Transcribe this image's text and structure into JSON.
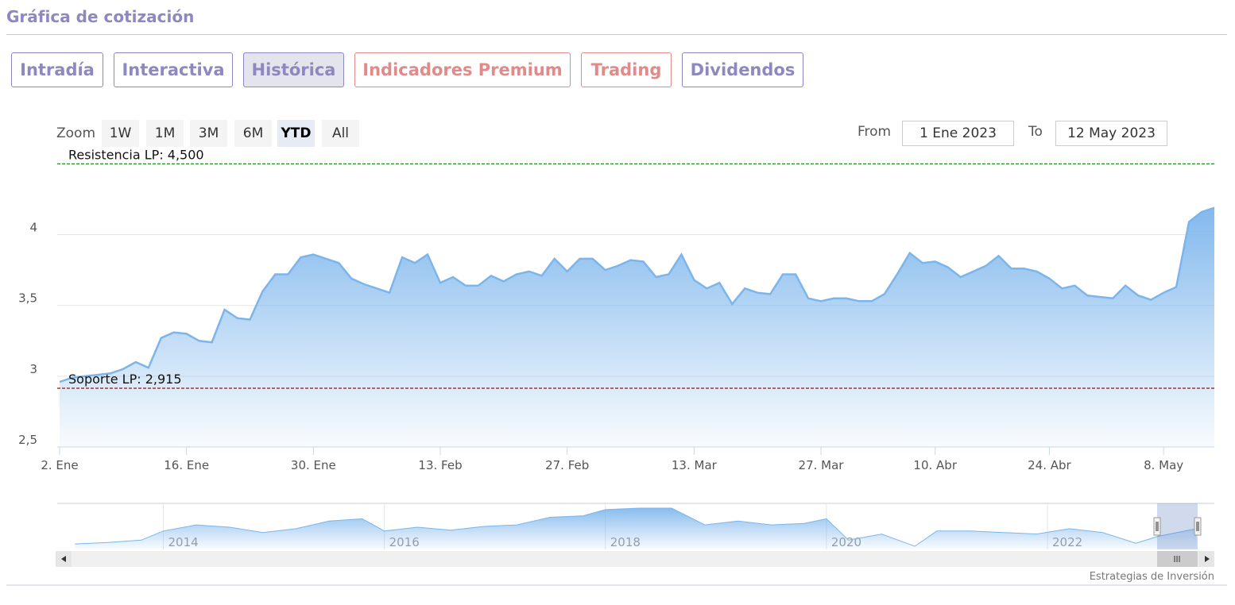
{
  "header": {
    "title": "Gráfica de cotización"
  },
  "tabs": [
    {
      "label": "Intradía",
      "color": "#8e88c0"
    },
    {
      "label": "Interactiva",
      "color": "#8e88c0"
    },
    {
      "label": "Histórica",
      "color": "#8e88c0",
      "active": true
    },
    {
      "label": "Indicadores Premium",
      "color": "#e08a8a"
    },
    {
      "label": "Trading",
      "color": "#e08a8a"
    },
    {
      "label": "Dividendos",
      "color": "#8e88c0"
    }
  ],
  "range_selector": {
    "zoom_label": "Zoom",
    "buttons": [
      {
        "label": "1W"
      },
      {
        "label": "1M"
      },
      {
        "label": "3M"
      },
      {
        "label": "6M"
      },
      {
        "label": "YTD",
        "active": true
      },
      {
        "label": "All"
      }
    ],
    "from_label": "From",
    "from": "1 Ene 2023",
    "to_label": "To",
    "to": "12 May 2023"
  },
  "chart_data": {
    "type": "area",
    "color": "#7cb5ec",
    "grid": true,
    "categories": [
      "2. Ene",
      null,
      null,
      null,
      null,
      null,
      null,
      null,
      null,
      null,
      "16. Ene",
      null,
      null,
      null,
      null,
      null,
      null,
      null,
      null,
      null,
      "30. Ene",
      null,
      null,
      null,
      null,
      null,
      null,
      null,
      null,
      null,
      "13. Feb",
      null,
      null,
      null,
      null,
      null,
      null,
      null,
      null,
      null,
      "27. Feb",
      null,
      null,
      null,
      null,
      null,
      null,
      null,
      null,
      null,
      "13. Mar",
      null,
      null,
      null,
      null,
      null,
      null,
      null,
      null,
      null,
      "27. Mar",
      null,
      null,
      null,
      null,
      null,
      null,
      null,
      null,
      "10. Abr",
      null,
      null,
      null,
      null,
      null,
      null,
      null,
      null,
      "24. Abr",
      null,
      null,
      null,
      null,
      null,
      null,
      null,
      null,
      "8. May",
      null,
      null,
      null,
      null
    ],
    "values": [
      2.96,
      2.99,
      3.0,
      3.01,
      3.02,
      3.05,
      3.1,
      3.06,
      3.27,
      3.31,
      3.3,
      3.25,
      3.24,
      3.47,
      3.41,
      3.4,
      3.6,
      3.72,
      3.72,
      3.84,
      3.86,
      3.83,
      3.8,
      3.69,
      3.65,
      3.62,
      3.59,
      3.84,
      3.8,
      3.86,
      3.66,
      3.7,
      3.64,
      3.64,
      3.71,
      3.67,
      3.72,
      3.74,
      3.71,
      3.83,
      3.74,
      3.83,
      3.83,
      3.75,
      3.78,
      3.82,
      3.81,
      3.7,
      3.72,
      3.86,
      3.68,
      3.62,
      3.66,
      3.51,
      3.62,
      3.59,
      3.58,
      3.72,
      3.72,
      3.55,
      3.53,
      3.55,
      3.55,
      3.53,
      3.53,
      3.58,
      3.72,
      3.87,
      3.8,
      3.81,
      3.77,
      3.7,
      3.74,
      3.78,
      3.85,
      3.76,
      3.76,
      3.74,
      3.69,
      3.62,
      3.64,
      3.57,
      3.56,
      3.55,
      3.64,
      3.57,
      3.54,
      3.59,
      3.63,
      4.09,
      4.16,
      4.19
    ],
    "ylim": [
      2.5,
      4.62
    ],
    "yticks": [
      {
        "value": 2.5,
        "label": "2,5"
      },
      3,
      {
        "value": 3.5,
        "label": "3,5"
      },
      4
    ],
    "plot_lines": [
      {
        "value": 4.5,
        "label": "Resistencia LP: 4,500",
        "color": "#1f8f1f"
      },
      {
        "value": 2.915,
        "label": "Soporte LP: 2,915",
        "color": "#9b1010"
      }
    ]
  },
  "navigator": {
    "type": "area",
    "color": "#7cb5ec",
    "x": [
      2013.2,
      2013.5,
      2013.8,
      2014.0,
      2014.3,
      2014.6,
      2014.9,
      2015.2,
      2015.5,
      2015.8,
      2016.0,
      2016.3,
      2016.6,
      2016.9,
      2017.2,
      2017.5,
      2017.8,
      2018.0,
      2018.3,
      2018.6,
      2018.9,
      2019.2,
      2019.5,
      2019.8,
      2020.0,
      2020.2,
      2020.5,
      2020.8,
      2021.0,
      2021.3,
      2021.6,
      2021.9,
      2022.2,
      2022.5,
      2022.8,
      2023.0,
      2023.35
    ],
    "values": [
      2.75,
      2.85,
      3.0,
      3.6,
      4.0,
      3.85,
      3.5,
      3.75,
      4.25,
      4.4,
      3.6,
      3.85,
      3.65,
      3.9,
      4.0,
      4.5,
      4.6,
      5.0,
      5.1,
      5.1,
      4.0,
      4.25,
      4.0,
      4.1,
      4.4,
      3.0,
      3.4,
      2.6,
      3.6,
      3.6,
      3.5,
      3.4,
      3.75,
      3.5,
      2.8,
      3.25,
      3.75
    ],
    "xlim": [
      2013.04,
      2023.51
    ],
    "xticks": [
      2014,
      2016,
      2018,
      2020,
      2022
    ]
  },
  "credits": "Estrategias de Inversión"
}
